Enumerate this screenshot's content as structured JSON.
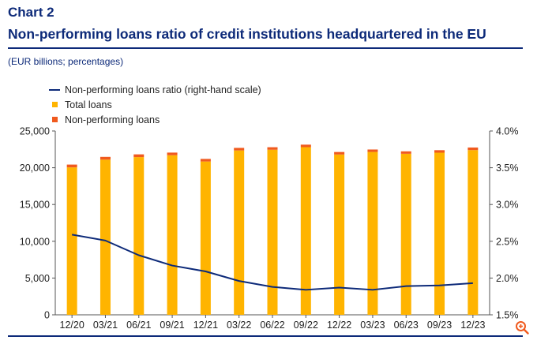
{
  "header": {
    "chart_label": "Chart 2",
    "title": "Non-performing loans ratio of credit institutions headquartered in the EU",
    "subtitle": "(EUR billions; percentages)"
  },
  "colors": {
    "title": "#0d2a79",
    "ratio_line": "#0d2a79",
    "total_loans": "#ffb400",
    "npl": "#f05a1e",
    "zoom_icon": "#f05a1e"
  },
  "icons": {
    "zoom": "zoom-in-icon"
  },
  "chart_data": {
    "type": "bar",
    "stacked": true,
    "title": "",
    "xlabel": "",
    "ylabel": "",
    "categories": [
      "12/20",
      "03/21",
      "06/21",
      "09/21",
      "12/21",
      "03/22",
      "06/22",
      "09/22",
      "12/22",
      "03/23",
      "06/23",
      "09/23",
      "12/23"
    ],
    "y_left": {
      "range": [
        0,
        25000
      ],
      "ticks": [
        "0",
        "5,000",
        "10,000",
        "15,000",
        "20,000",
        "25,000"
      ],
      "tick_values": [
        0,
        5000,
        10000,
        15000,
        20000,
        25000
      ]
    },
    "y_right": {
      "range": [
        1.5,
        4.0
      ],
      "ticks": [
        "1.5%",
        "2.0%",
        "2.5%",
        "3.0%",
        "3.5%",
        "4.0%"
      ],
      "tick_values": [
        1.5,
        2.0,
        2.5,
        3.0,
        3.5,
        4.0
      ]
    },
    "legend": {
      "position": "top-left"
    },
    "grid": false,
    "series": [
      {
        "name": "Non-performing loans ratio (right-hand scale)",
        "kind": "line",
        "axis": "right",
        "values": [
          2.59,
          2.51,
          2.31,
          2.17,
          2.09,
          1.96,
          1.88,
          1.84,
          1.87,
          1.84,
          1.89,
          1.9,
          1.93
        ]
      },
      {
        "name": "Total loans",
        "kind": "bar",
        "axis": "left",
        "values": [
          20050,
          21100,
          21450,
          21700,
          20850,
          22350,
          22450,
          22800,
          21800,
          22150,
          21900,
          22050,
          22400
        ]
      },
      {
        "name": "Non-performing loans",
        "kind": "bar",
        "axis": "left",
        "values": [
          380,
          380,
          370,
          360,
          350,
          350,
          340,
          340,
          340,
          330,
          330,
          340,
          350
        ]
      }
    ]
  }
}
